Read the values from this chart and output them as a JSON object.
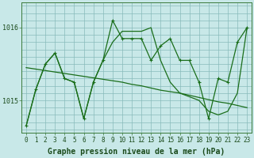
{
  "background_color": "#c8e8e8",
  "plot_bg_color": "#c8e8e8",
  "line_color": "#1a6e1a",
  "grid_color": "#88bbbb",
  "xlabel": "Graphe pression niveau de la mer (hPa)",
  "xlabel_fontsize": 7.0,
  "tick_fontsize": 6.0,
  "yticks": [
    1015,
    1016
  ],
  "ylim": [
    1014.55,
    1016.35
  ],
  "xlim": [
    -0.5,
    23.5
  ],
  "xticks": [
    0,
    1,
    2,
    3,
    4,
    5,
    6,
    7,
    8,
    9,
    10,
    11,
    12,
    13,
    14,
    15,
    16,
    17,
    18,
    19,
    20,
    21,
    22,
    23
  ],
  "s1_y": [
    1014.65,
    1015.15,
    1015.5,
    1015.65,
    1015.3,
    1015.25,
    1014.75,
    1015.25,
    1015.55,
    1016.1,
    1015.85,
    1015.85,
    1015.85,
    1015.55,
    1015.75,
    1015.85,
    1015.55,
    1015.55,
    1015.25,
    1014.75,
    1015.3,
    1015.25,
    1015.8,
    1016.0
  ],
  "s2_y": [
    1014.65,
    1015.15,
    1015.5,
    1015.65,
    1015.3,
    1015.25,
    1014.75,
    1015.25,
    1015.55,
    1015.8,
    1015.95,
    1015.95,
    1015.95,
    1016.0,
    1015.55,
    1015.25,
    1015.1,
    1015.05,
    1015.0,
    1014.85,
    1014.8,
    1014.85,
    1015.1,
    1016.0
  ],
  "s3_y": [
    1015.45,
    1015.43,
    1015.41,
    1015.39,
    1015.37,
    1015.35,
    1015.33,
    1015.31,
    1015.29,
    1015.27,
    1015.25,
    1015.22,
    1015.2,
    1015.17,
    1015.14,
    1015.12,
    1015.1,
    1015.07,
    1015.04,
    1015.01,
    1014.98,
    1014.96,
    1014.93,
    1014.9
  ]
}
